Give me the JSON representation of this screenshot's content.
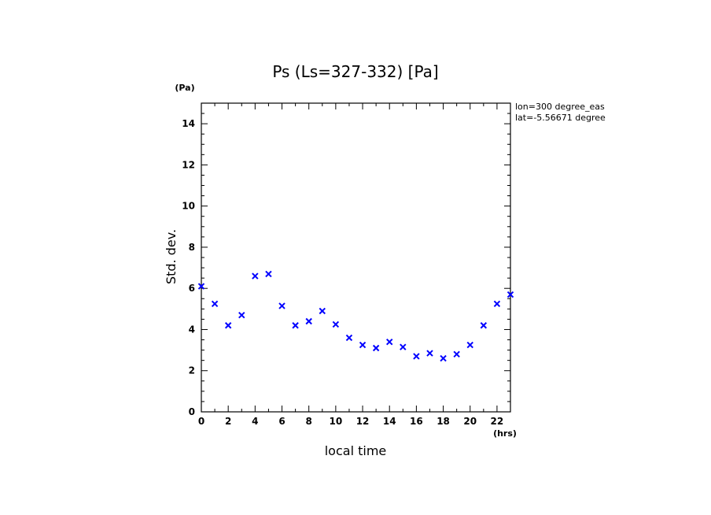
{
  "chart_data": {
    "type": "scatter",
    "title": "Ps (Ls=327-332) [Pa]",
    "xlabel": "local time",
    "ylabel": "Std. dev.",
    "x_unit": "(hrs)",
    "y_unit": "(Pa)",
    "xlim": [
      0,
      23
    ],
    "ylim": [
      0,
      15
    ],
    "x_ticks": [
      0,
      2,
      4,
      6,
      8,
      10,
      12,
      14,
      16,
      18,
      20,
      22
    ],
    "y_ticks": [
      0,
      2,
      4,
      6,
      8,
      10,
      12,
      14
    ],
    "annotations": [
      "lon=300 degree_eas",
      "lat=-5.56671 degree"
    ],
    "marker": "x",
    "marker_color": "#0000ff",
    "grid": false,
    "series": [
      {
        "x": [
          0,
          1,
          2,
          3,
          4,
          5,
          6,
          7,
          8,
          9,
          10,
          11,
          12,
          13,
          14,
          15,
          16,
          17,
          18,
          19,
          20,
          21,
          22,
          23
        ],
        "y": [
          6.1,
          5.25,
          4.2,
          4.7,
          6.6,
          6.7,
          5.15,
          4.2,
          4.4,
          4.9,
          4.25,
          3.6,
          3.25,
          3.1,
          3.4,
          3.15,
          2.7,
          2.85,
          2.6,
          2.8,
          3.25,
          4.2,
          5.25,
          5.7
        ]
      }
    ]
  }
}
